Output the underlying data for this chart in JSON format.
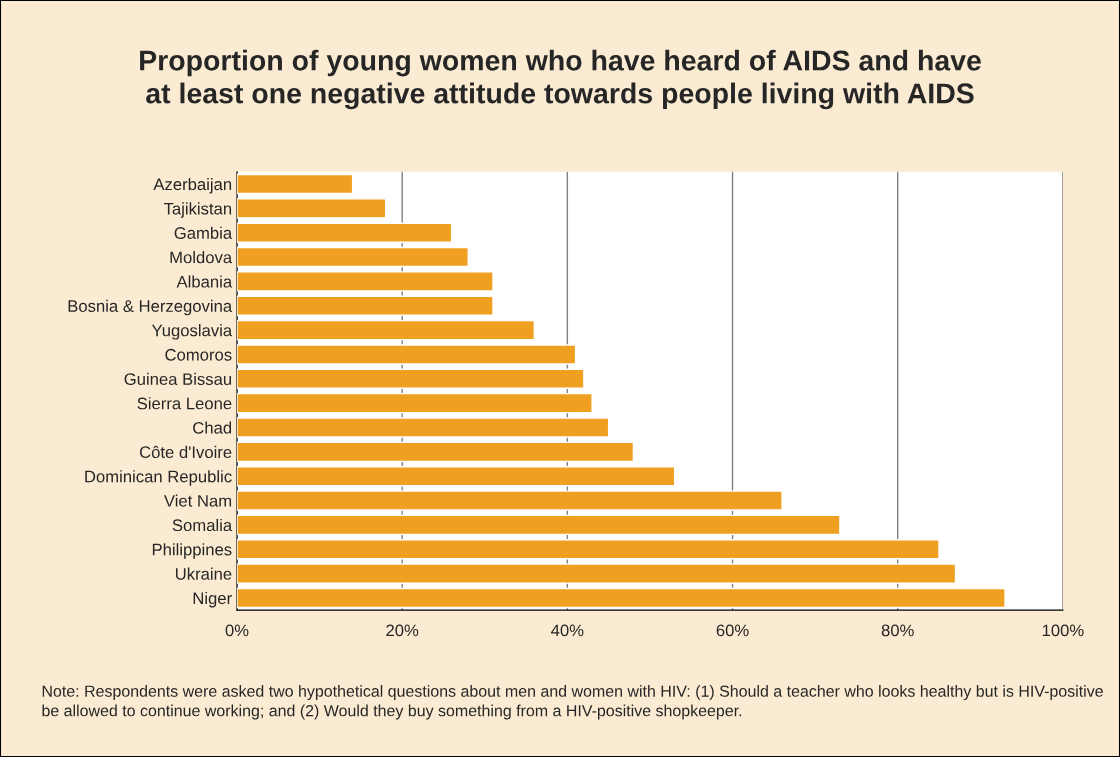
{
  "chart_data": {
    "type": "bar",
    "orientation": "horizontal",
    "title": "Proportion of young women who have heard of AIDS and have\nat least one negative attitude towards people living with AIDS",
    "categories": [
      "Azerbaijan",
      "Tajikistan",
      "Gambia",
      "Moldova",
      "Albania",
      "Bosnia & Herzegovina",
      "Yugoslavia",
      "Comoros",
      "Guinea Bissau",
      "Sierra Leone",
      "Chad",
      "Côte d'Ivoire",
      "Dominican Republic",
      "Viet Nam",
      "Somalia",
      "Philippines",
      "Ukraine",
      "Niger"
    ],
    "values": [
      14,
      18,
      26,
      28,
      31,
      31,
      36,
      41,
      42,
      43,
      45,
      48,
      53,
      66,
      73,
      85,
      87,
      93
    ],
    "color": "#f0a020",
    "xlim": [
      0,
      100
    ],
    "xticks": [
      {
        "value": 0,
        "label": "0%"
      },
      {
        "value": 20,
        "label": "20%"
      },
      {
        "value": 40,
        "label": "40%"
      },
      {
        "value": 60,
        "label": "60%"
      },
      {
        "value": 80,
        "label": "80%"
      },
      {
        "value": 100,
        "label": "100%"
      }
    ],
    "grid": "x",
    "annotations": [
      "Note: Respondents were asked two hypothetical questions about men and women with HIV: (1) Should a teacher who looks healthy but is HIV-positive be allowed to continue working; and (2) Would they buy something from a HIV-positive shopkeeper."
    ]
  }
}
